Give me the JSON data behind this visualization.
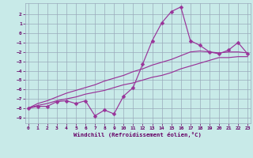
{
  "xlabel": "Windchill (Refroidissement éolien,°C)",
  "bg_color": "#c8eae8",
  "grid_color": "#99aabb",
  "line_color": "#993399",
  "x_values": [
    0,
    1,
    2,
    3,
    4,
    5,
    6,
    7,
    8,
    9,
    10,
    11,
    12,
    13,
    14,
    15,
    16,
    17,
    18,
    19,
    20,
    21,
    22,
    23
  ],
  "line_main": [
    -8.0,
    -7.8,
    -7.8,
    -7.3,
    -7.2,
    -7.5,
    -7.2,
    -8.8,
    -8.2,
    -8.6,
    -6.7,
    -5.8,
    -3.3,
    -0.8,
    1.1,
    2.3,
    2.8,
    -0.8,
    -1.3,
    -2.0,
    -2.2,
    -1.8,
    -1.0,
    -2.2
  ],
  "line_hi": [
    -8.0,
    -7.5,
    -7.2,
    -6.8,
    -6.4,
    -6.1,
    -5.8,
    -5.5,
    -5.1,
    -4.8,
    -4.5,
    -4.1,
    -3.8,
    -3.4,
    -3.1,
    -2.8,
    -2.4,
    -2.0,
    -1.9,
    -2.0,
    -2.1,
    -2.0,
    -2.0,
    -2.1
  ],
  "line_lo": [
    -8.0,
    -7.7,
    -7.5,
    -7.2,
    -7.0,
    -6.8,
    -6.5,
    -6.3,
    -6.1,
    -5.8,
    -5.5,
    -5.3,
    -5.0,
    -4.7,
    -4.5,
    -4.2,
    -3.8,
    -3.5,
    -3.2,
    -2.9,
    -2.6,
    -2.6,
    -2.5,
    -2.5
  ],
  "xlim": [
    -0.3,
    23.3
  ],
  "ylim": [
    -9.6,
    3.2
  ],
  "yticks": [
    2,
    1,
    0,
    -1,
    -2,
    -3,
    -4,
    -5,
    -6,
    -7,
    -8,
    -9
  ],
  "xticks": [
    0,
    1,
    2,
    3,
    4,
    5,
    6,
    7,
    8,
    9,
    10,
    11,
    12,
    13,
    14,
    15,
    16,
    17,
    18,
    19,
    20,
    21,
    22,
    23
  ],
  "font_color": "#660066",
  "tick_fontsize": 4.5,
  "xlabel_fontsize": 5.2,
  "markersize": 2.5,
  "linewidth": 0.85
}
